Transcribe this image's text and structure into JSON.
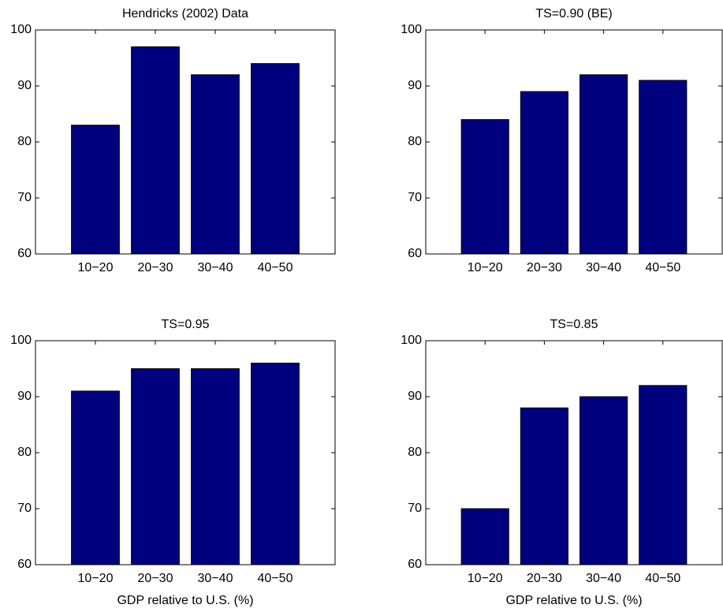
{
  "chart_data": [
    {
      "type": "bar",
      "title": "Hendricks (2002) Data",
      "categories": [
        "10−20",
        "20−30",
        "30−40",
        "40−50"
      ],
      "values": [
        83,
        97,
        92,
        94
      ],
      "color": "#00007f",
      "ylim": [
        60,
        100
      ],
      "yticks": [
        60,
        70,
        80,
        90,
        100
      ]
    },
    {
      "type": "bar",
      "title": "TS=0.90 (BE)",
      "categories": [
        "10−20",
        "20−30",
        "30−40",
        "40−50"
      ],
      "values": [
        84,
        89,
        92,
        91
      ],
      "color": "#00007f",
      "ylim": [
        60,
        100
      ],
      "yticks": [
        60,
        70,
        80,
        90,
        100
      ]
    },
    {
      "type": "bar",
      "title": "TS=0.95",
      "x_label": "GDP relative to U.S. (%)",
      "categories": [
        "10−20",
        "20−30",
        "30−40",
        "40−50"
      ],
      "values": [
        91,
        95,
        95,
        96
      ],
      "color": "#00007f",
      "ylim": [
        60,
        100
      ],
      "yticks": [
        60,
        70,
        80,
        90,
        100
      ]
    },
    {
      "type": "bar",
      "title": "TS=0.85",
      "x_label": "GDP relative to U.S. (%)",
      "categories": [
        "10−20",
        "20−30",
        "30−40",
        "40−50"
      ],
      "values": [
        70,
        88,
        90,
        92
      ],
      "color": "#00007f",
      "ylim": [
        60,
        100
      ],
      "yticks": [
        60,
        70,
        80,
        90,
        100
      ]
    }
  ]
}
